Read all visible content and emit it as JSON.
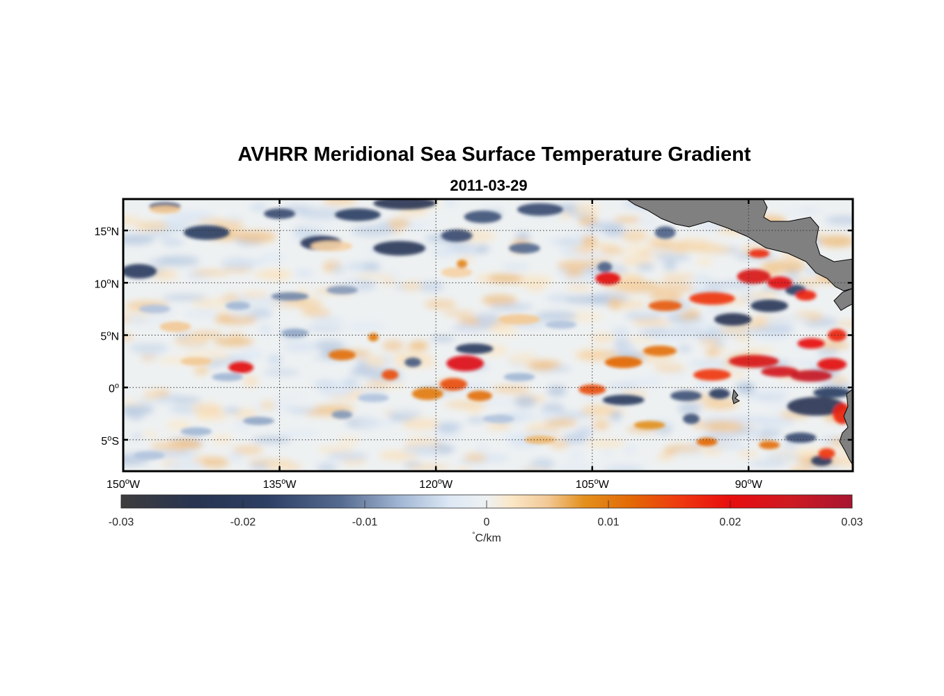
{
  "figure": {
    "title": "AVHRR Meridional Sea Surface Temperature Gradient",
    "subtitle": "2011-03-29"
  },
  "map": {
    "lon_range": [
      -150,
      -80
    ],
    "lat_range": [
      -8,
      18
    ],
    "land_color": "#808080",
    "grid": "dotted",
    "lon_ticks": [
      {
        "value": -150,
        "label": "150",
        "sup": "o",
        "suffix": "W"
      },
      {
        "value": -135,
        "label": "135",
        "sup": "o",
        "suffix": "W"
      },
      {
        "value": -120,
        "label": "120",
        "sup": "o",
        "suffix": "W"
      },
      {
        "value": -105,
        "label": "105",
        "sup": "o",
        "suffix": "W"
      },
      {
        "value": -90,
        "label": "90",
        "sup": "o",
        "suffix": "W"
      }
    ],
    "lat_ticks": [
      {
        "value": 15,
        "label": "15",
        "sup": "o",
        "suffix": "N"
      },
      {
        "value": 10,
        "label": "10",
        "sup": "o",
        "suffix": "N"
      },
      {
        "value": 5,
        "label": "5",
        "sup": "o",
        "suffix": "N"
      },
      {
        "value": 0,
        "label": "0",
        "sup": "o",
        "suffix": ""
      },
      {
        "value": -5,
        "label": "5",
        "sup": "o",
        "suffix": "S"
      }
    ],
    "positive_features": [
      {
        "lon": -138.7,
        "lat": 1.9,
        "a": 1.2,
        "b": 0.55,
        "v": 0.021
      },
      {
        "lon": -129.0,
        "lat": 3.1,
        "a": 1.3,
        "b": 0.5,
        "v": 0.011
      },
      {
        "lon": -124.4,
        "lat": 1.2,
        "a": 0.8,
        "b": 0.5,
        "v": 0.014
      },
      {
        "lon": -120.8,
        "lat": -0.6,
        "a": 1.5,
        "b": 0.6,
        "v": 0.01
      },
      {
        "lon": -117.2,
        "lat": 2.3,
        "a": 1.8,
        "b": 0.75,
        "v": 0.022
      },
      {
        "lon": -118.3,
        "lat": 0.3,
        "a": 1.3,
        "b": 0.6,
        "v": 0.014
      },
      {
        "lon": -115.8,
        "lat": -0.8,
        "a": 1.2,
        "b": 0.5,
        "v": 0.011
      },
      {
        "lon": -103.5,
        "lat": 10.4,
        "a": 1.2,
        "b": 0.6,
        "v": 0.021
      },
      {
        "lon": -98.0,
        "lat": 7.8,
        "a": 1.6,
        "b": 0.5,
        "v": 0.013
      },
      {
        "lon": -93.5,
        "lat": 8.5,
        "a": 2.2,
        "b": 0.6,
        "v": 0.016
      },
      {
        "lon": -89.5,
        "lat": 10.6,
        "a": 1.6,
        "b": 0.7,
        "v": 0.023
      },
      {
        "lon": -87.0,
        "lat": 10.0,
        "a": 1.2,
        "b": 0.6,
        "v": 0.021
      },
      {
        "lon": -89.0,
        "lat": 12.8,
        "a": 1.0,
        "b": 0.4,
        "v": 0.017
      },
      {
        "lon": -84.5,
        "lat": 8.8,
        "a": 1.0,
        "b": 0.5,
        "v": 0.018
      },
      {
        "lon": -102.0,
        "lat": 2.4,
        "a": 1.8,
        "b": 0.55,
        "v": 0.012
      },
      {
        "lon": -98.5,
        "lat": 3.5,
        "a": 1.6,
        "b": 0.5,
        "v": 0.011
      },
      {
        "lon": -105.0,
        "lat": -0.2,
        "a": 1.3,
        "b": 0.5,
        "v": 0.014
      },
      {
        "lon": -93.5,
        "lat": 1.2,
        "a": 1.8,
        "b": 0.55,
        "v": 0.016
      },
      {
        "lon": -89.5,
        "lat": 2.5,
        "a": 2.4,
        "b": 0.6,
        "v": 0.023
      },
      {
        "lon": -87.0,
        "lat": 1.5,
        "a": 1.8,
        "b": 0.5,
        "v": 0.024
      },
      {
        "lon": -84.0,
        "lat": 1.1,
        "a": 2.0,
        "b": 0.55,
        "v": 0.026
      },
      {
        "lon": -82.0,
        "lat": 2.2,
        "a": 1.4,
        "b": 0.6,
        "v": 0.021
      },
      {
        "lon": -84.0,
        "lat": 4.2,
        "a": 1.3,
        "b": 0.5,
        "v": 0.02
      },
      {
        "lon": -81.5,
        "lat": 5.0,
        "a": 0.9,
        "b": 0.6,
        "v": 0.018
      },
      {
        "lon": -81.0,
        "lat": -2.5,
        "a": 0.9,
        "b": 1.0,
        "v": 0.018
      },
      {
        "lon": -82.5,
        "lat": -6.3,
        "a": 0.8,
        "b": 0.5,
        "v": 0.016
      },
      {
        "lon": -94.0,
        "lat": -5.2,
        "a": 1.0,
        "b": 0.4,
        "v": 0.012
      },
      {
        "lon": -99.5,
        "lat": -3.6,
        "a": 1.5,
        "b": 0.4,
        "v": 0.008
      },
      {
        "lon": -88.0,
        "lat": -5.5,
        "a": 1.0,
        "b": 0.4,
        "v": 0.011
      },
      {
        "lon": -110.0,
        "lat": -5.0,
        "a": 1.5,
        "b": 0.4,
        "v": 0.006
      },
      {
        "lon": -145.0,
        "lat": 5.8,
        "a": 1.5,
        "b": 0.5,
        "v": 0.005
      },
      {
        "lon": -112.0,
        "lat": 6.5,
        "a": 2.0,
        "b": 0.5,
        "v": 0.005
      },
      {
        "lon": -130.0,
        "lat": 13.5,
        "a": 2.0,
        "b": 0.5,
        "v": 0.004
      },
      {
        "lon": -146.0,
        "lat": 17.0,
        "a": 1.5,
        "b": 0.4,
        "v": 0.005
      },
      {
        "lon": -118.0,
        "lat": 11.0,
        "a": 1.5,
        "b": 0.5,
        "v": 0.004
      },
      {
        "lon": -126.0,
        "lat": 4.8,
        "a": 0.5,
        "b": 0.4,
        "v": 0.01
      },
      {
        "lon": -117.5,
        "lat": 11.8,
        "a": 0.5,
        "b": 0.4,
        "v": 0.009
      },
      {
        "lon": -143.0,
        "lat": 2.5,
        "a": 1.5,
        "b": 0.4,
        "v": 0.005
      }
    ],
    "negative_features": [
      {
        "lon": -148.5,
        "lat": 11.1,
        "a": 1.7,
        "b": 0.7,
        "v": -0.019
      },
      {
        "lon": -146.0,
        "lat": 17.3,
        "a": 1.5,
        "b": 0.4,
        "v": -0.015
      },
      {
        "lon": -142.0,
        "lat": 14.8,
        "a": 2.2,
        "b": 0.7,
        "v": -0.018
      },
      {
        "lon": -135.0,
        "lat": 16.6,
        "a": 1.5,
        "b": 0.5,
        "v": -0.016
      },
      {
        "lon": -131.0,
        "lat": 13.8,
        "a": 2.0,
        "b": 0.7,
        "v": -0.02
      },
      {
        "lon": -127.5,
        "lat": 16.5,
        "a": 2.2,
        "b": 0.6,
        "v": -0.018
      },
      {
        "lon": -123.0,
        "lat": 17.6,
        "a": 3.0,
        "b": 0.6,
        "v": -0.022
      },
      {
        "lon": -123.5,
        "lat": 13.3,
        "a": 2.5,
        "b": 0.7,
        "v": -0.021
      },
      {
        "lon": -118.0,
        "lat": 14.5,
        "a": 1.5,
        "b": 0.6,
        "v": -0.016
      },
      {
        "lon": -115.5,
        "lat": 16.3,
        "a": 1.8,
        "b": 0.6,
        "v": -0.015
      },
      {
        "lon": -110.0,
        "lat": 17.0,
        "a": 2.2,
        "b": 0.6,
        "v": -0.016
      },
      {
        "lon": -111.5,
        "lat": 13.3,
        "a": 1.5,
        "b": 0.5,
        "v": -0.012
      },
      {
        "lon": -98.0,
        "lat": 14.8,
        "a": 1.0,
        "b": 0.6,
        "v": -0.013
      },
      {
        "lon": -103.8,
        "lat": 11.5,
        "a": 0.7,
        "b": 0.5,
        "v": -0.013
      },
      {
        "lon": -91.5,
        "lat": 6.5,
        "a": 1.8,
        "b": 0.6,
        "v": -0.022
      },
      {
        "lon": -88.0,
        "lat": 7.8,
        "a": 1.8,
        "b": 0.6,
        "v": -0.021
      },
      {
        "lon": -85.5,
        "lat": 9.3,
        "a": 1.0,
        "b": 0.5,
        "v": -0.018
      },
      {
        "lon": -134.0,
        "lat": 8.7,
        "a": 1.8,
        "b": 0.4,
        "v": -0.01
      },
      {
        "lon": -129.0,
        "lat": 9.3,
        "a": 1.5,
        "b": 0.4,
        "v": -0.009
      },
      {
        "lon": -116.3,
        "lat": 3.7,
        "a": 1.8,
        "b": 0.5,
        "v": -0.019
      },
      {
        "lon": -122.2,
        "lat": 2.4,
        "a": 0.8,
        "b": 0.45,
        "v": -0.014
      },
      {
        "lon": -102.0,
        "lat": -1.2,
        "a": 2.0,
        "b": 0.5,
        "v": -0.019
      },
      {
        "lon": -96.0,
        "lat": -0.8,
        "a": 1.5,
        "b": 0.5,
        "v": -0.015
      },
      {
        "lon": -92.8,
        "lat": -0.6,
        "a": 1.0,
        "b": 0.5,
        "v": -0.019
      },
      {
        "lon": -83.5,
        "lat": -1.8,
        "a": 2.8,
        "b": 0.9,
        "v": -0.022
      },
      {
        "lon": -82.0,
        "lat": -0.5,
        "a": 1.8,
        "b": 0.5,
        "v": -0.018
      },
      {
        "lon": -85.0,
        "lat": -4.8,
        "a": 1.5,
        "b": 0.5,
        "v": -0.016
      },
      {
        "lon": -83.0,
        "lat": -7.0,
        "a": 1.0,
        "b": 0.5,
        "v": -0.02
      },
      {
        "lon": -95.5,
        "lat": -3.0,
        "a": 0.8,
        "b": 0.5,
        "v": -0.015
      },
      {
        "lon": -137.0,
        "lat": -3.2,
        "a": 1.5,
        "b": 0.4,
        "v": -0.008
      },
      {
        "lon": -143.0,
        "lat": -4.2,
        "a": 1.5,
        "b": 0.4,
        "v": -0.007
      },
      {
        "lon": -129.0,
        "lat": -2.6,
        "a": 1.0,
        "b": 0.4,
        "v": -0.009
      },
      {
        "lon": -139.0,
        "lat": 7.8,
        "a": 1.2,
        "b": 0.4,
        "v": -0.007
      },
      {
        "lon": -147.0,
        "lat": 7.5,
        "a": 1.5,
        "b": 0.4,
        "v": -0.006
      },
      {
        "lon": -112.0,
        "lat": 1.0,
        "a": 1.5,
        "b": 0.4,
        "v": -0.007
      },
      {
        "lon": -108.0,
        "lat": 6.0,
        "a": 1.5,
        "b": 0.4,
        "v": -0.006
      },
      {
        "lon": -140.0,
        "lat": 1.0,
        "a": 1.5,
        "b": 0.4,
        "v": -0.007
      },
      {
        "lon": -126.0,
        "lat": -1.0,
        "a": 1.5,
        "b": 0.4,
        "v": -0.006
      },
      {
        "lon": -114.0,
        "lat": -3.0,
        "a": 1.5,
        "b": 0.4,
        "v": -0.006
      },
      {
        "lon": -147.5,
        "lat": -6.5,
        "a": 1.5,
        "b": 0.4,
        "v": -0.006
      },
      {
        "lon": -133.5,
        "lat": 5.2,
        "a": 1.3,
        "b": 0.4,
        "v": -0.008
      }
    ]
  },
  "colorbar": {
    "range": [
      -0.03,
      0.03
    ],
    "ticks": [
      "-0.03",
      "-0.02",
      "-0.01",
      "0",
      "0.01",
      "0.02",
      "0.03"
    ],
    "unit_deg": "°",
    "unit_text": "C/km",
    "stops": [
      {
        "v": -0.03,
        "color": "#3d3d3d"
      },
      {
        "v": -0.024,
        "color": "#283450"
      },
      {
        "v": -0.018,
        "color": "#2d3f64"
      },
      {
        "v": -0.012,
        "color": "#556a8f"
      },
      {
        "v": -0.007,
        "color": "#a3b8d5"
      },
      {
        "v": -0.003,
        "color": "#dde8f5"
      },
      {
        "v": 0.0,
        "color": "#eef1f2"
      },
      {
        "v": 0.002,
        "color": "#fbe7c8"
      },
      {
        "v": 0.005,
        "color": "#f2c996"
      },
      {
        "v": 0.008,
        "color": "#e3901c"
      },
      {
        "v": 0.012,
        "color": "#e36706"
      },
      {
        "v": 0.016,
        "color": "#ef3710"
      },
      {
        "v": 0.02,
        "color": "#e80d0e"
      },
      {
        "v": 0.025,
        "color": "#cd1a22"
      },
      {
        "v": 0.03,
        "color": "#a81530"
      }
    ]
  }
}
